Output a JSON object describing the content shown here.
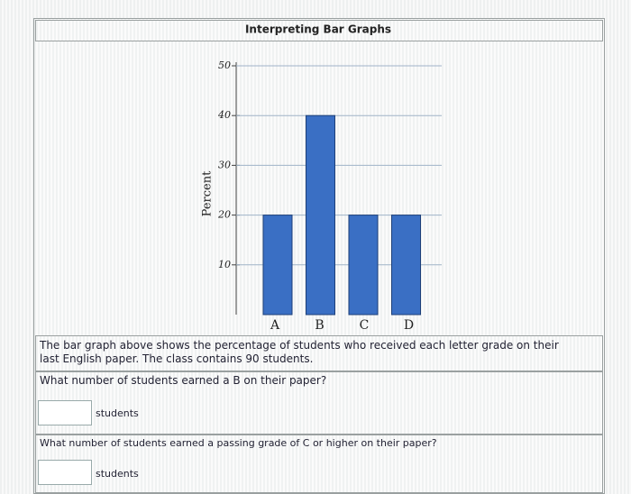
{
  "chart_data": {
    "type": "bar",
    "title": "Interpreting Bar Graphs",
    "y_label": "Percent",
    "categories": [
      "A",
      "B",
      "C",
      "D"
    ],
    "values": [
      20,
      40,
      20,
      20
    ],
    "color": "#3a6fc4",
    "ylim": [
      0,
      50
    ],
    "yticks": [
      10,
      20,
      30,
      40,
      50
    ],
    "grid": true
  },
  "problem": {
    "description": "The bar graph above shows the percentage of students who received each letter grade on their last English paper. The class contains 90 students.",
    "question_1": "What number of students earned a B on their paper?",
    "unit_1": "students",
    "question_2": "What number of students earned a passing grade of C or higher on their paper?",
    "unit_2": "students"
  }
}
